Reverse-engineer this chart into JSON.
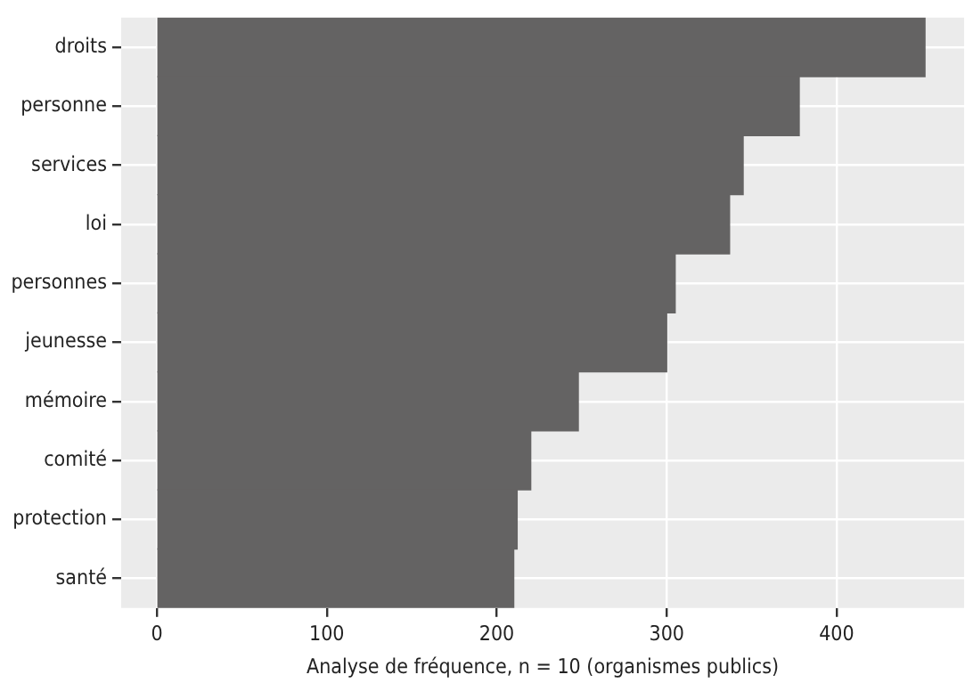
{
  "chart_data": {
    "type": "bar",
    "orientation": "horizontal",
    "xlabel": "Analyse de fréquence, n = 10 (organismes publics)",
    "categories": [
      "droits",
      "personne",
      "services",
      "loi",
      "personnes",
      "jeunesse",
      "mémoire",
      "comité",
      "protection",
      "santé"
    ],
    "values": [
      452,
      378,
      345,
      337,
      305,
      300,
      248,
      220,
      212,
      210
    ],
    "color": "#646363",
    "xlim": [
      -21,
      475
    ],
    "xticks": [
      0,
      100,
      200,
      300,
      400
    ],
    "grid": true
  }
}
